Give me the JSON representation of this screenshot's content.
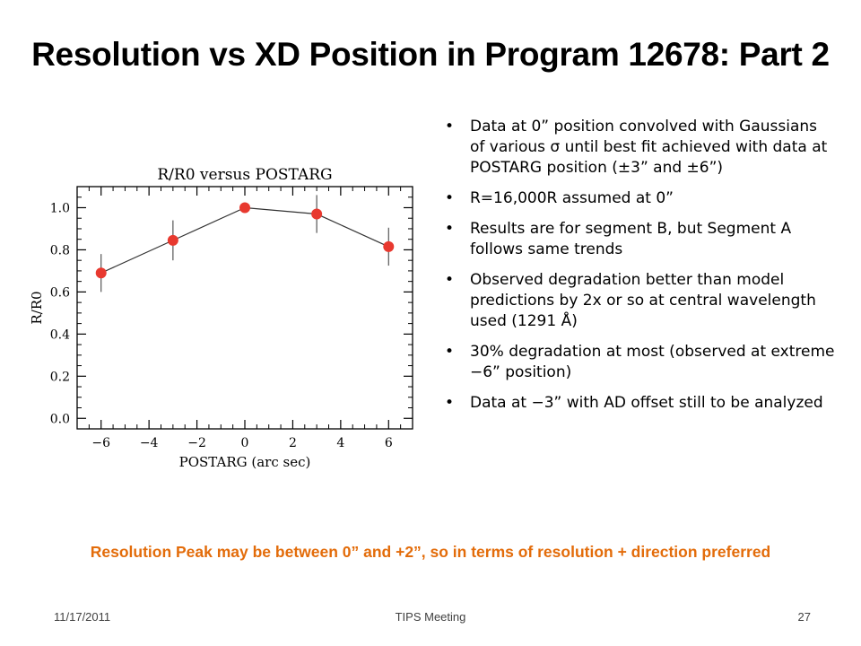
{
  "slide": {
    "title": "Resolution vs XD Position in Program 12678: Part 2",
    "bullets": [
      "Data at 0” position convolved with Gaussians of various σ until best fit achieved with data at POSTARG position (±3” and ±6”)",
      "R=16,000R assumed at 0”",
      "Results are for segment B, but Segment A follows same trends",
      "Observed degradation better than model predictions by 2x or so at central wavelength used (1291 Å)",
      "30% degradation at most (observed at extreme −6” position)",
      "Data at −3” with AD offset still to be analyzed"
    ],
    "callout": "Resolution Peak may be between 0” and +2”, so in terms of resolution + direction preferred",
    "footer": {
      "date": "11/17/2011",
      "meeting": "TIPS Meeting",
      "page": "27"
    }
  },
  "chart_data": {
    "type": "scatter",
    "title": "R/R0 versus POSTARG",
    "xlabel": "POSTARG (arc sec)",
    "ylabel": "R/R0",
    "xlim": [
      -7,
      7
    ],
    "ylim": [
      -0.05,
      1.1
    ],
    "xticks": [
      -6,
      -4,
      -2,
      0,
      2,
      4,
      6
    ],
    "xtick_labels": [
      "−6",
      "−4",
      "−2",
      "0",
      "2",
      "4",
      "6"
    ],
    "yticks": [
      0.0,
      0.2,
      0.4,
      0.6,
      0.8,
      1.0
    ],
    "ytick_labels": [
      "0.0",
      "0.2",
      "0.4",
      "0.6",
      "0.8",
      "1.0"
    ],
    "series": [
      {
        "x": [
          -6,
          -3,
          0,
          3,
          6
        ],
        "y": [
          0.69,
          0.845,
          1.0,
          0.97,
          0.815
        ],
        "yerr": [
          0.09,
          0.095,
          0.0,
          0.09,
          0.09
        ],
        "marker_color": "#e8392f",
        "line_color": "#333333",
        "connected": true
      }
    ],
    "grid": false
  }
}
